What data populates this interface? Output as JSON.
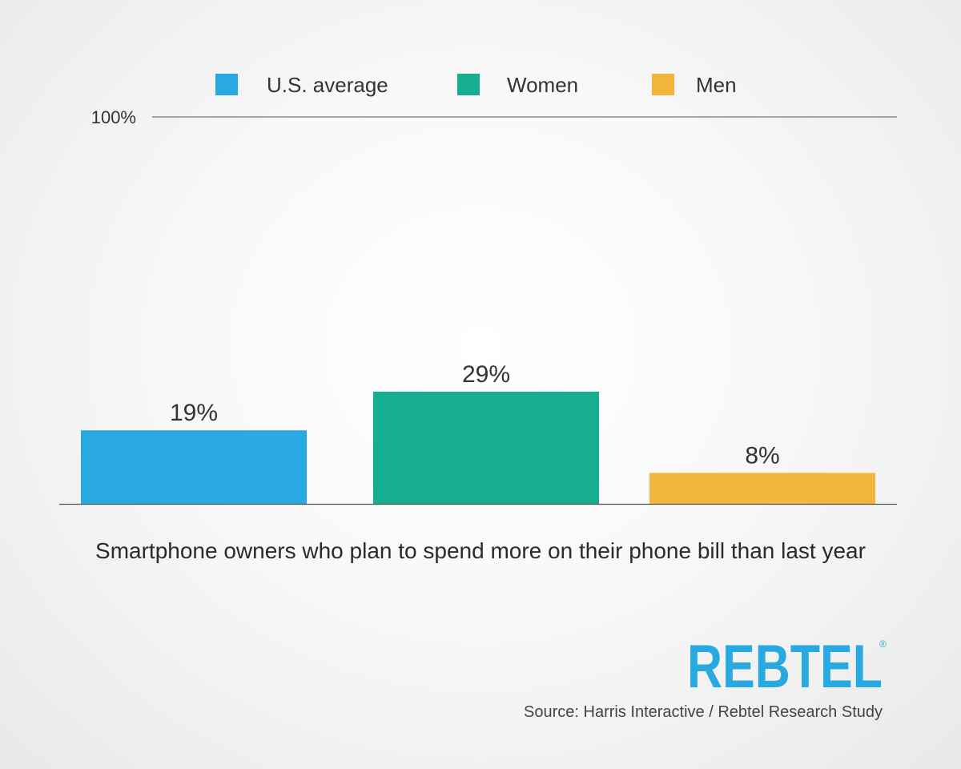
{
  "chart_data": {
    "type": "bar",
    "categories": [
      "U.S. average",
      "Women",
      "Men"
    ],
    "values": [
      19,
      29,
      8
    ],
    "value_labels": [
      "19%",
      "29%",
      "8%"
    ],
    "colors": [
      "#29a9e1",
      "#16ae91",
      "#f3b63c"
    ],
    "legend": [
      {
        "name": "U.S. average",
        "color": "#29a9e1"
      },
      {
        "name": "Women",
        "color": "#16ae91"
      },
      {
        "name": "Men",
        "color": "#f3b63c"
      }
    ],
    "legend_position": "top",
    "ylim": [
      0,
      100
    ],
    "y_tick_label": "100%",
    "xlabel": "Smartphone owners who plan to spend more on their phone bill than last year",
    "ylabel": "",
    "grid": false
  },
  "branding": {
    "logo_text": "REBTEL",
    "logo_mark": "®",
    "logo_color": "#29a9e1"
  },
  "source_text": "Source: Harris Interactive / Rebtel Research Study"
}
